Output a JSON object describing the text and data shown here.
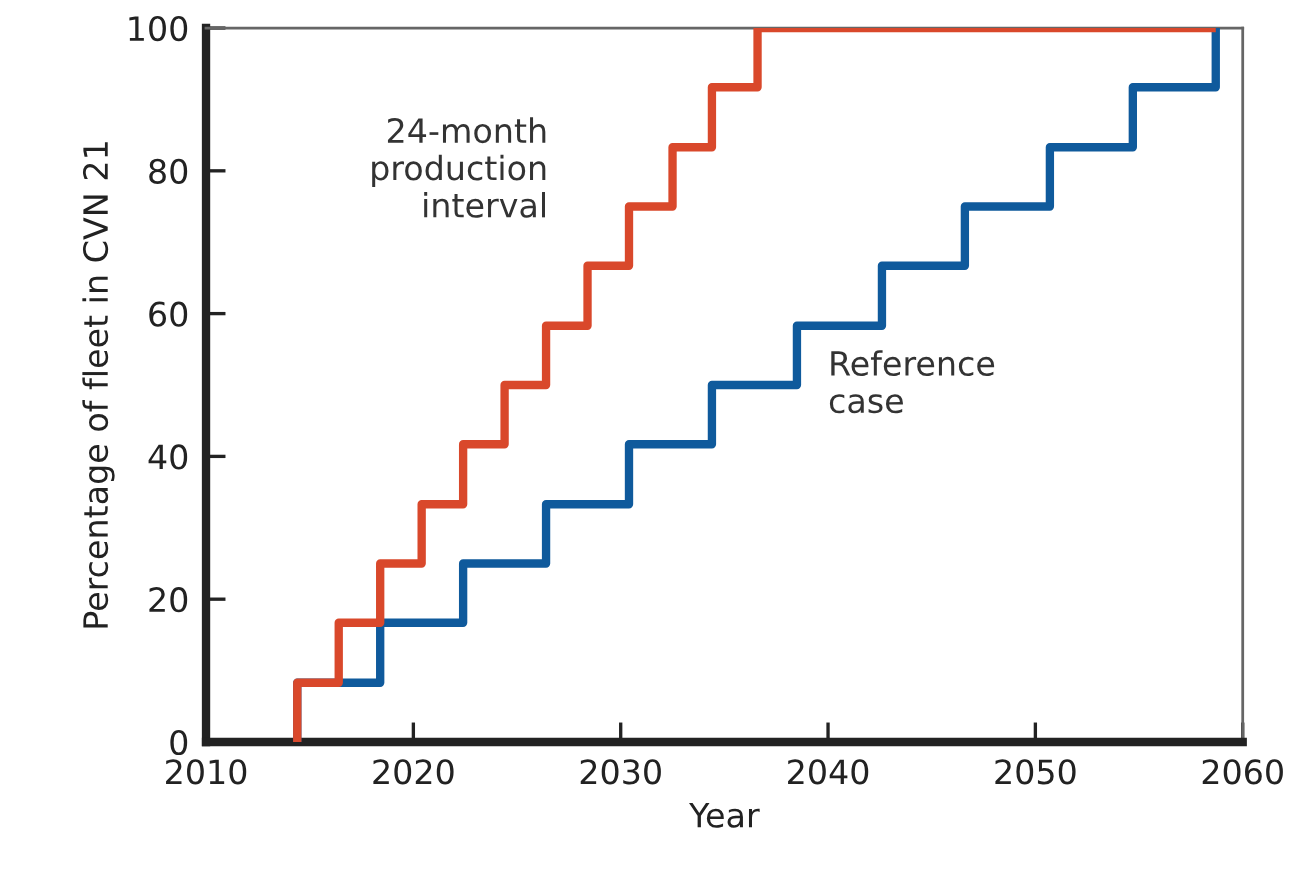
{
  "chart_data": {
    "type": "step",
    "xlabel": "Year",
    "ylabel": "Percentage of fleet in CVN 21",
    "xlim": [
      2010,
      2060
    ],
    "xticks": [
      2010,
      2020,
      2030,
      2040,
      2050,
      2060
    ],
    "ylim": [
      0,
      100
    ],
    "yticks": [
      0,
      20,
      40,
      60,
      80,
      100
    ],
    "grid": false,
    "legend": false,
    "series": [
      {
        "name": "24-month production interval",
        "color": "#d9482b",
        "x": [
          2014.4,
          2014.4,
          2016.4,
          2018.4,
          2020.4,
          2022.4,
          2024.4,
          2026.4,
          2028.4,
          2030.4,
          2032.5,
          2034.4,
          2036.6,
          2058.7
        ],
        "values": [
          0,
          8.3,
          16.7,
          25,
          33.3,
          41.7,
          50,
          58.3,
          66.7,
          75,
          83.3,
          91.7,
          100,
          100
        ]
      },
      {
        "name": "Reference case",
        "color": "#0f5a9c",
        "x": [
          2014.4,
          2014.4,
          2018.4,
          2022.4,
          2026.4,
          2030.4,
          2034.4,
          2038.5,
          2042.6,
          2046.6,
          2050.7,
          2054.7,
          2058.7
        ],
        "values": [
          0,
          8.3,
          16.7,
          25,
          33.3,
          41.7,
          50,
          58.3,
          66.7,
          75,
          83.3,
          91.7,
          100
        ]
      }
    ]
  }
}
